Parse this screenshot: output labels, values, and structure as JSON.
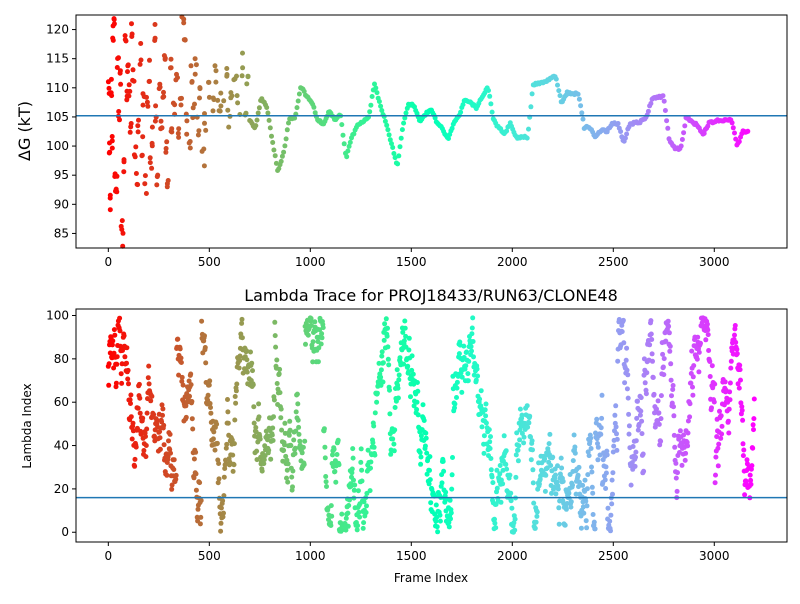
{
  "chart_data": [
    {
      "type": "scatter",
      "title": "",
      "xlabel": "",
      "ylabel": "ΔG (kT)",
      "ylabel_italic_part": "G",
      "xlim": [
        -160,
        3360
      ],
      "ylim": [
        82.5,
        122.5
      ],
      "xticks": [
        0,
        500,
        1000,
        1500,
        2000,
        2500,
        3000
      ],
      "yticks": [
        85,
        90,
        95,
        100,
        105,
        110,
        115,
        120
      ],
      "hline": 105.2,
      "hline_color": "#1f77b4",
      "colormap": "rainbow",
      "marker_size": 2.5,
      "segments": [
        {
          "x0": 0,
          "x1": 25,
          "values": [
            110,
            100,
            90,
            110,
            100,
            120
          ]
        },
        {
          "x0": 25,
          "x1": 120,
          "values": [
            121,
            94,
            93,
            115,
            105,
            111,
            87.5,
            83.5,
            96,
            118,
            108,
            113,
            110,
            104,
            119
          ]
        },
        {
          "x0": 120,
          "x1": 300,
          "values": [
            112,
            98,
            94,
            104,
            116,
            100,
            109,
            93.5,
            107,
            113,
            97,
            102,
            119,
            105,
            95,
            110,
            103,
            108,
            115,
            100,
            94.5
          ]
        },
        {
          "x0": 300,
          "x1": 460,
          "values": [
            113,
            103,
            106,
            111,
            102,
            108,
            121,
            117,
            104,
            99,
            112,
            106,
            114,
            103,
            109
          ]
        },
        {
          "x0": 460,
          "x1": 700,
          "values": [
            98,
            104,
            110,
            107,
            112,
            106,
            108,
            113,
            105,
            109,
            111,
            107,
            114,
            106,
            110
          ]
        },
        {
          "x0": 700,
          "x1": 3170,
          "values": [
            104.5,
            103,
            108.2,
            106.8,
            101,
            95.5,
            99,
            104.8,
            105,
            110.3,
            108.6,
            107.5,
            104.5,
            103.8,
            106,
            104.5,
            105.5,
            98,
            101.5,
            103.5,
            104.2,
            105,
            110.7,
            107,
            104.2,
            100.5,
            96.5,
            103.2,
            107.2,
            107,
            104.2,
            105.5,
            106.5,
            104,
            103,
            101.2,
            104,
            105.5,
            108,
            107.5,
            106.5,
            108.5,
            110.2,
            104.5,
            103,
            102.2,
            104,
            101.5,
            101.5,
            101.5,
            110.5,
            110.8,
            111,
            111.5,
            112,
            107.2,
            109.2,
            109,
            109,
            103.2,
            103.2,
            101.5,
            102.8,
            102.5,
            103.8,
            103.8,
            100.5,
            103.8,
            104,
            104.2,
            105,
            108.2,
            108.5,
            108.5,
            101,
            99.5,
            99.5,
            105,
            104.2,
            103.5,
            102,
            104,
            104.2,
            104.5,
            104.5,
            104.5,
            100,
            102.5,
            102.5
          ]
        }
      ]
    },
    {
      "type": "scatter",
      "title": "Lambda Trace for PROJ18433/RUN63/CLONE48",
      "xlabel": "Frame Index",
      "ylabel": "Lambda Index",
      "xlim": [
        -160,
        3360
      ],
      "ylim": [
        -4.5,
        103
      ],
      "xticks": [
        0,
        500,
        1000,
        1500,
        2000,
        2500,
        3000
      ],
      "yticks": [
        0,
        20,
        40,
        60,
        80,
        100
      ],
      "hline": 16,
      "hline_color": "#1f77b4",
      "colormap": "rainbow",
      "marker_size": 2.5,
      "n_points": 3200,
      "range": [
        0,
        99
      ],
      "distribution": "each frame holds a lambda index between 0 and 99; points form vertical random-walk columns spanning the full range"
    }
  ]
}
